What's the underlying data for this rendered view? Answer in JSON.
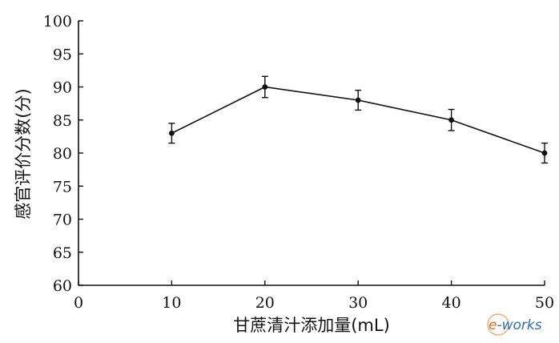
{
  "chart_data": {
    "type": "line",
    "title": "",
    "xlabel": "甘蔗清汁添加量(mL)",
    "ylabel": "感官评价分数(分)",
    "xlim": [
      0,
      50
    ],
    "ylim": [
      60,
      100
    ],
    "x_ticks": [
      0,
      10,
      20,
      30,
      40,
      50
    ],
    "y_ticks": [
      60,
      65,
      70,
      75,
      80,
      85,
      90,
      95,
      100
    ],
    "grid": false,
    "legend": "none",
    "series": [
      {
        "x": [
          10,
          20,
          30,
          40,
          50
        ],
        "values": [
          83,
          90,
          88,
          85,
          80
        ],
        "error": [
          1.5,
          1.6,
          1.5,
          1.6,
          1.5
        ]
      }
    ]
  },
  "watermark": {
    "text": "e-works",
    "colors": {
      "e": "#e86a1a",
      "works": "#2a6fb5"
    }
  }
}
